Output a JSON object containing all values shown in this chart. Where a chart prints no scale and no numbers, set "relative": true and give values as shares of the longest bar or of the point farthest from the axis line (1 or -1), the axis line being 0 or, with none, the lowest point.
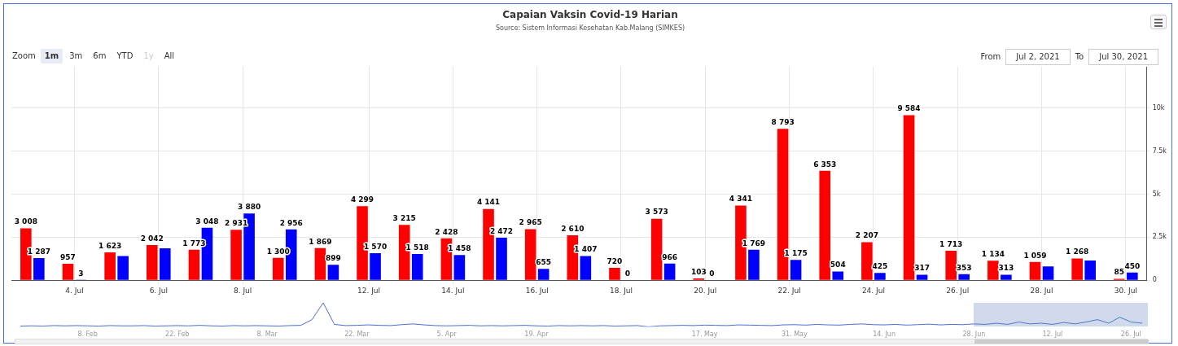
{
  "chart_data": [
    {
      "type": "bar",
      "title": "Capaian Vaksin Covid-19 Harian",
      "subtitle": "Source: Sistem Informasi Kesehatan Kab.Malang (SIMKES)",
      "categories": [
        null,
        "4. Jul",
        null,
        "6. Jul",
        null,
        "8. Jul",
        null,
        null,
        "12. Jul",
        null,
        "14. Jul",
        null,
        "16. Jul",
        null,
        "18. Jul",
        null,
        "20. Jul",
        null,
        "22. Jul",
        null,
        "24. Jul",
        null,
        "26. Jul",
        null,
        "28. Jul",
        null,
        "30. Jul"
      ],
      "series": [
        {
          "color": "#ff0000",
          "values": [
            3008,
            957,
            1623,
            2042,
            1773,
            2931,
            1300,
            1869,
            4299,
            3215,
            2428,
            4141,
            2965,
            2610,
            720,
            3573,
            103,
            4341,
            8793,
            6353,
            2207,
            9584,
            1713,
            1134,
            1059,
            1268,
            85
          ],
          "value_labels": [
            "3 008",
            "957",
            "1 623",
            "2 042",
            "1 773",
            "2 931",
            "1 300",
            "1 869",
            "4 299",
            "3 215",
            "2 428",
            "4 141",
            "2 965",
            "2 610",
            "720",
            "3 573",
            "103",
            "4 341",
            "8 793",
            "6 353",
            "2 207",
            "9 584",
            "1 713",
            "1 134",
            "1 059",
            "1 268",
            "85"
          ]
        },
        {
          "color": "#0000ff",
          "values": [
            1287,
            3,
            1400,
            1850,
            3048,
            3880,
            2956,
            899,
            1570,
            1518,
            1458,
            2472,
            655,
            1407,
            0,
            966,
            0,
            1769,
            1175,
            504,
            425,
            317,
            353,
            313,
            800,
            1150,
            450
          ],
          "value_labels": [
            "1 287",
            "3",
            null,
            null,
            "3 048",
            "3 880",
            "2 956",
            "899",
            "1 570",
            "1 518",
            "1 458",
            "2 472",
            "655",
            "1 407",
            "0",
            "966",
            "0",
            "1 769",
            "1 175",
            "504",
            "425",
            "317",
            "353",
            "313",
            null,
            null,
            "450"
          ]
        }
      ],
      "ylim": [
        0,
        12400
      ],
      "yticks": [
        0,
        {
          "value": 2500,
          "label": "2.5k"
        },
        {
          "value": 5000,
          "label": "5k"
        },
        {
          "value": 7500,
          "label": "7.5k"
        },
        {
          "value": 10000,
          "label": "10k"
        }
      ],
      "grid": true,
      "annotations": [
        "Zoom",
        "1m",
        "3m",
        "6m",
        "YTD",
        "1y",
        "All",
        "From",
        "Jul 2, 2021",
        "To",
        "Jul 30, 2021"
      ]
    },
    {
      "type": "line",
      "relative": true,
      "color": "#4a6fd0",
      "categories": [
        null,
        null,
        null,
        null,
        null,
        null,
        "8. Feb",
        null,
        null,
        null,
        null,
        null,
        null,
        null,
        "22. Feb",
        null,
        null,
        null,
        null,
        null,
        null,
        null,
        "8. Mar",
        null,
        null,
        null,
        null,
        null,
        null,
        null,
        "22. Mar",
        null,
        null,
        null,
        null,
        null,
        null,
        null,
        "5. Apr",
        null,
        null,
        null,
        null,
        null,
        null,
        null,
        "19. Apr",
        null,
        null,
        null,
        null,
        null,
        null,
        null,
        null,
        null,
        null,
        null,
        null,
        null,
        null,
        "17. May",
        null,
        null,
        null,
        null,
        null,
        null,
        null,
        "31. May",
        null,
        null,
        null,
        null,
        null,
        null,
        null,
        "14. Jun",
        null,
        null,
        null,
        null,
        null,
        null,
        null,
        "28. Jun",
        null,
        null,
        null,
        null,
        null,
        null,
        "12. Jul",
        null,
        null,
        null,
        null,
        null,
        null,
        "26. Jul",
        null
      ],
      "values": [
        0.03,
        0.04,
        0.03,
        0.05,
        0.04,
        0.05,
        0.04,
        0.03,
        0.05,
        0.04,
        0.04,
        0.05,
        0.03,
        0.04,
        0.05,
        0.04,
        0.06,
        0.04,
        0.03,
        0.05,
        0.04,
        0.05,
        0.04,
        0.03,
        0.05,
        0.06,
        0.3,
        1,
        0.1,
        0.05,
        0.06,
        0.08,
        0.06,
        0.05,
        0.09,
        0.12,
        0.08,
        0.05,
        0.04,
        0.05,
        0.06,
        0.04,
        0.05,
        0.04,
        0.05,
        0.06,
        0.04,
        0.03,
        0.05,
        0.04,
        0.05,
        0.04,
        0.05,
        0.03,
        0.04,
        0.05,
        0,
        0.04,
        0.05,
        0.06,
        0.05,
        0.07,
        0.06,
        0.05,
        0.08,
        0.07,
        0.06,
        0.05,
        0.08,
        0.09,
        0.07,
        0.1,
        0.08,
        0.07,
        0.1,
        0.12,
        0.09,
        0.08,
        0.1,
        0.07,
        0.09,
        0.11,
        0.08,
        0.1,
        0.09,
        0.12,
        0.1,
        0.15,
        0.1,
        0.2,
        0.12,
        0.15,
        0.1,
        0.18,
        0.12,
        0.2,
        0.3,
        0.15,
        0.4,
        0.2,
        0.15
      ]
    }
  ]
}
